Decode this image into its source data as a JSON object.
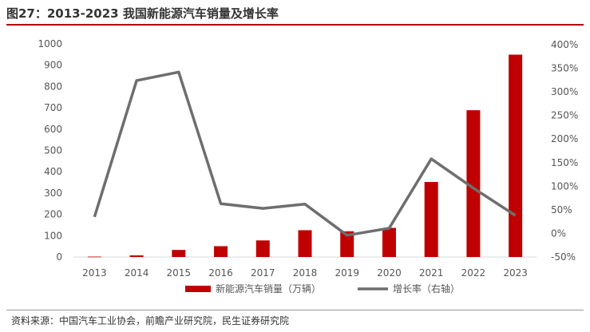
{
  "title": "图27：2013-2023 我国新能源汽车销量及增长率",
  "source": "资料来源：中国汽车工业协会，前瞻产业研究院，民生证券研究院",
  "chart_data": {
    "type": "bar+line",
    "categories": [
      "2013",
      "2014",
      "2015",
      "2016",
      "2017",
      "2018",
      "2019",
      "2020",
      "2021",
      "2022",
      "2023"
    ],
    "series": [
      {
        "name": "新能源汽车销量（万辆）",
        "type": "bar",
        "axis": "left",
        "color": "#c00000",
        "values": [
          1.8,
          7.5,
          33.1,
          50.7,
          77.7,
          125.6,
          120.6,
          136.7,
          352.1,
          688.7,
          949.5
        ]
      },
      {
        "name": "增长率（右轴）",
        "type": "line",
        "axis": "right",
        "color": "#6e6e6e",
        "values": [
          0.35,
          3.24,
          3.42,
          0.63,
          0.53,
          0.62,
          -0.04,
          0.11,
          1.58,
          0.96,
          0.38
        ]
      }
    ],
    "left_axis": {
      "min": 0,
      "max": 1000,
      "step": 100,
      "ticks": [
        "0",
        "100",
        "200",
        "300",
        "400",
        "500",
        "600",
        "700",
        "800",
        "900",
        "1000"
      ]
    },
    "right_axis": {
      "min": -0.5,
      "max": 4.0,
      "step": 0.5,
      "ticks": [
        "-50%",
        "0%",
        "50%",
        "100%",
        "150%",
        "200%",
        "250%",
        "300%",
        "350%",
        "400%"
      ]
    },
    "legend_position": "bottom",
    "grid": false
  }
}
